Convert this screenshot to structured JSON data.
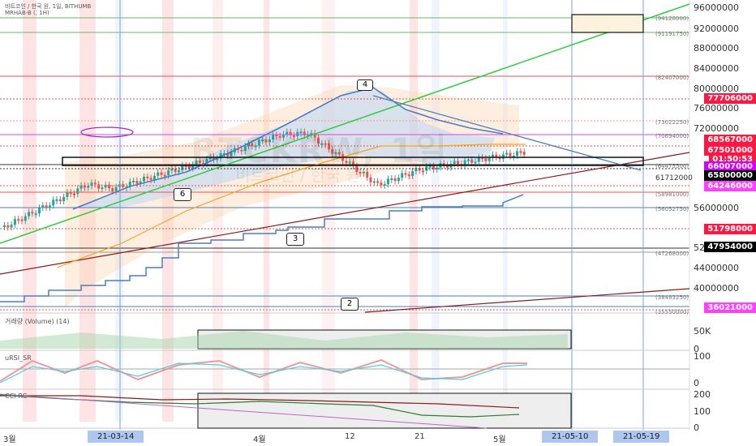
{
  "header": {
    "symbol_line": "비트코인 / 한국 원, 1일, BITHUMB",
    "indicator_line": "MRHAB-B (, 1H)"
  },
  "watermark": {
    "ticker": "BTCKRW, 1일",
    "name": "비트코인 / 한국 원"
  },
  "colors": {
    "up": "#26a69a",
    "down": "#ef5350",
    "trend_green": "#2ecc40",
    "trend_blue": "#4a7fc1",
    "trend_maroon": "#8b1a1a",
    "ma_orange": "#f5a623",
    "highlight_red": "#ff1744",
    "highlight_magenta": "#e040fb",
    "tag_black": "#000000"
  },
  "chart_data": [
    {
      "type": "line",
      "title": "",
      "ylabel": "",
      "ylim": [
        35000000,
        97000000
      ],
      "price_axis_labels": [
        "96000000",
        "92000000",
        "88000000",
        "84000000",
        "80000000",
        "76000000",
        "72000000",
        "56000000",
        "52000000",
        "44000000",
        "40000000"
      ],
      "price_tags": [
        {
          "value": "77706000",
          "style": "red"
        },
        {
          "value": "68567000",
          "style": "red"
        },
        {
          "value": "67501000",
          "style": "red"
        },
        {
          "value": "01:50:53",
          "style": "red"
        },
        {
          "value": "66007000",
          "style": "magenta"
        },
        {
          "value": "65800000",
          "style": "black"
        },
        {
          "value": "64246000",
          "style": "magenta"
        },
        {
          "value": "51798000",
          "style": "red"
        },
        {
          "value": "47954000",
          "style": "black"
        },
        {
          "value": "36021000",
          "style": "magenta"
        }
      ],
      "level_labels": [
        "(94120000)",
        "(91191750)",
        "(82407000)",
        "(73022250)",
        "(70694000)",
        "(64475500)",
        "61712000",
        "(58981000)",
        "(56052750)",
        "(47268000)",
        "(38483250)",
        "(35550000)"
      ],
      "annotations": [
        "2",
        "3",
        "4",
        "6"
      ],
      "x_labels": [
        "3월",
        "21-03-14",
        "4월",
        "12",
        "21",
        "5월",
        "21-05-10",
        "21-05-19"
      ]
    },
    {
      "type": "bar",
      "title": "거래량 (Volume) (14)",
      "y_labels": [
        "50K",
        "0"
      ]
    },
    {
      "type": "line",
      "title": "uRSI_SR",
      "y_labels": [
        "100",
        "0"
      ]
    },
    {
      "type": "line",
      "title": "CCI-RC",
      "y_labels": [
        "200",
        "100",
        "0"
      ]
    }
  ]
}
